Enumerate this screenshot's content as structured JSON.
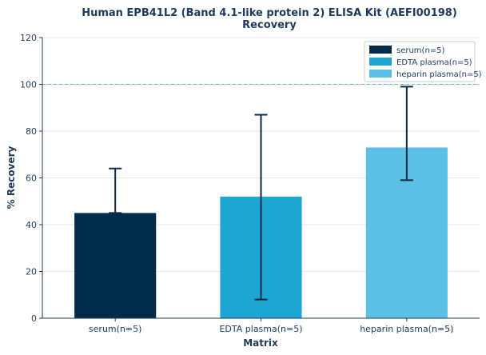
{
  "chart_data": {
    "type": "bar",
    "title": "Human EPB41L2 (Band 4.1-like protein 2) ELISA Kit (AEFI00198)",
    "subtitle": "Recovery",
    "xlabel": "Matrix",
    "ylabel": "% Recovery",
    "ylim": [
      0,
      120
    ],
    "yticks": [
      0,
      20,
      40,
      60,
      80,
      100,
      120
    ],
    "categories": [
      "serum(n=5)",
      "EDTA plasma(n=5)",
      "heparin plasma(n=5)"
    ],
    "values": [
      45,
      52,
      73
    ],
    "error_low": [
      45,
      8,
      59
    ],
    "error_high": [
      64,
      87,
      99
    ],
    "colors": [
      "#002b49",
      "#1fa5d4",
      "#5bc0e3"
    ],
    "reference_line": 100,
    "grid": true,
    "legend": {
      "placement": "top-right",
      "entries": [
        "serum(n=5)",
        "EDTA plasma(n=5)",
        "heparin plasma(n=5)"
      ]
    }
  }
}
